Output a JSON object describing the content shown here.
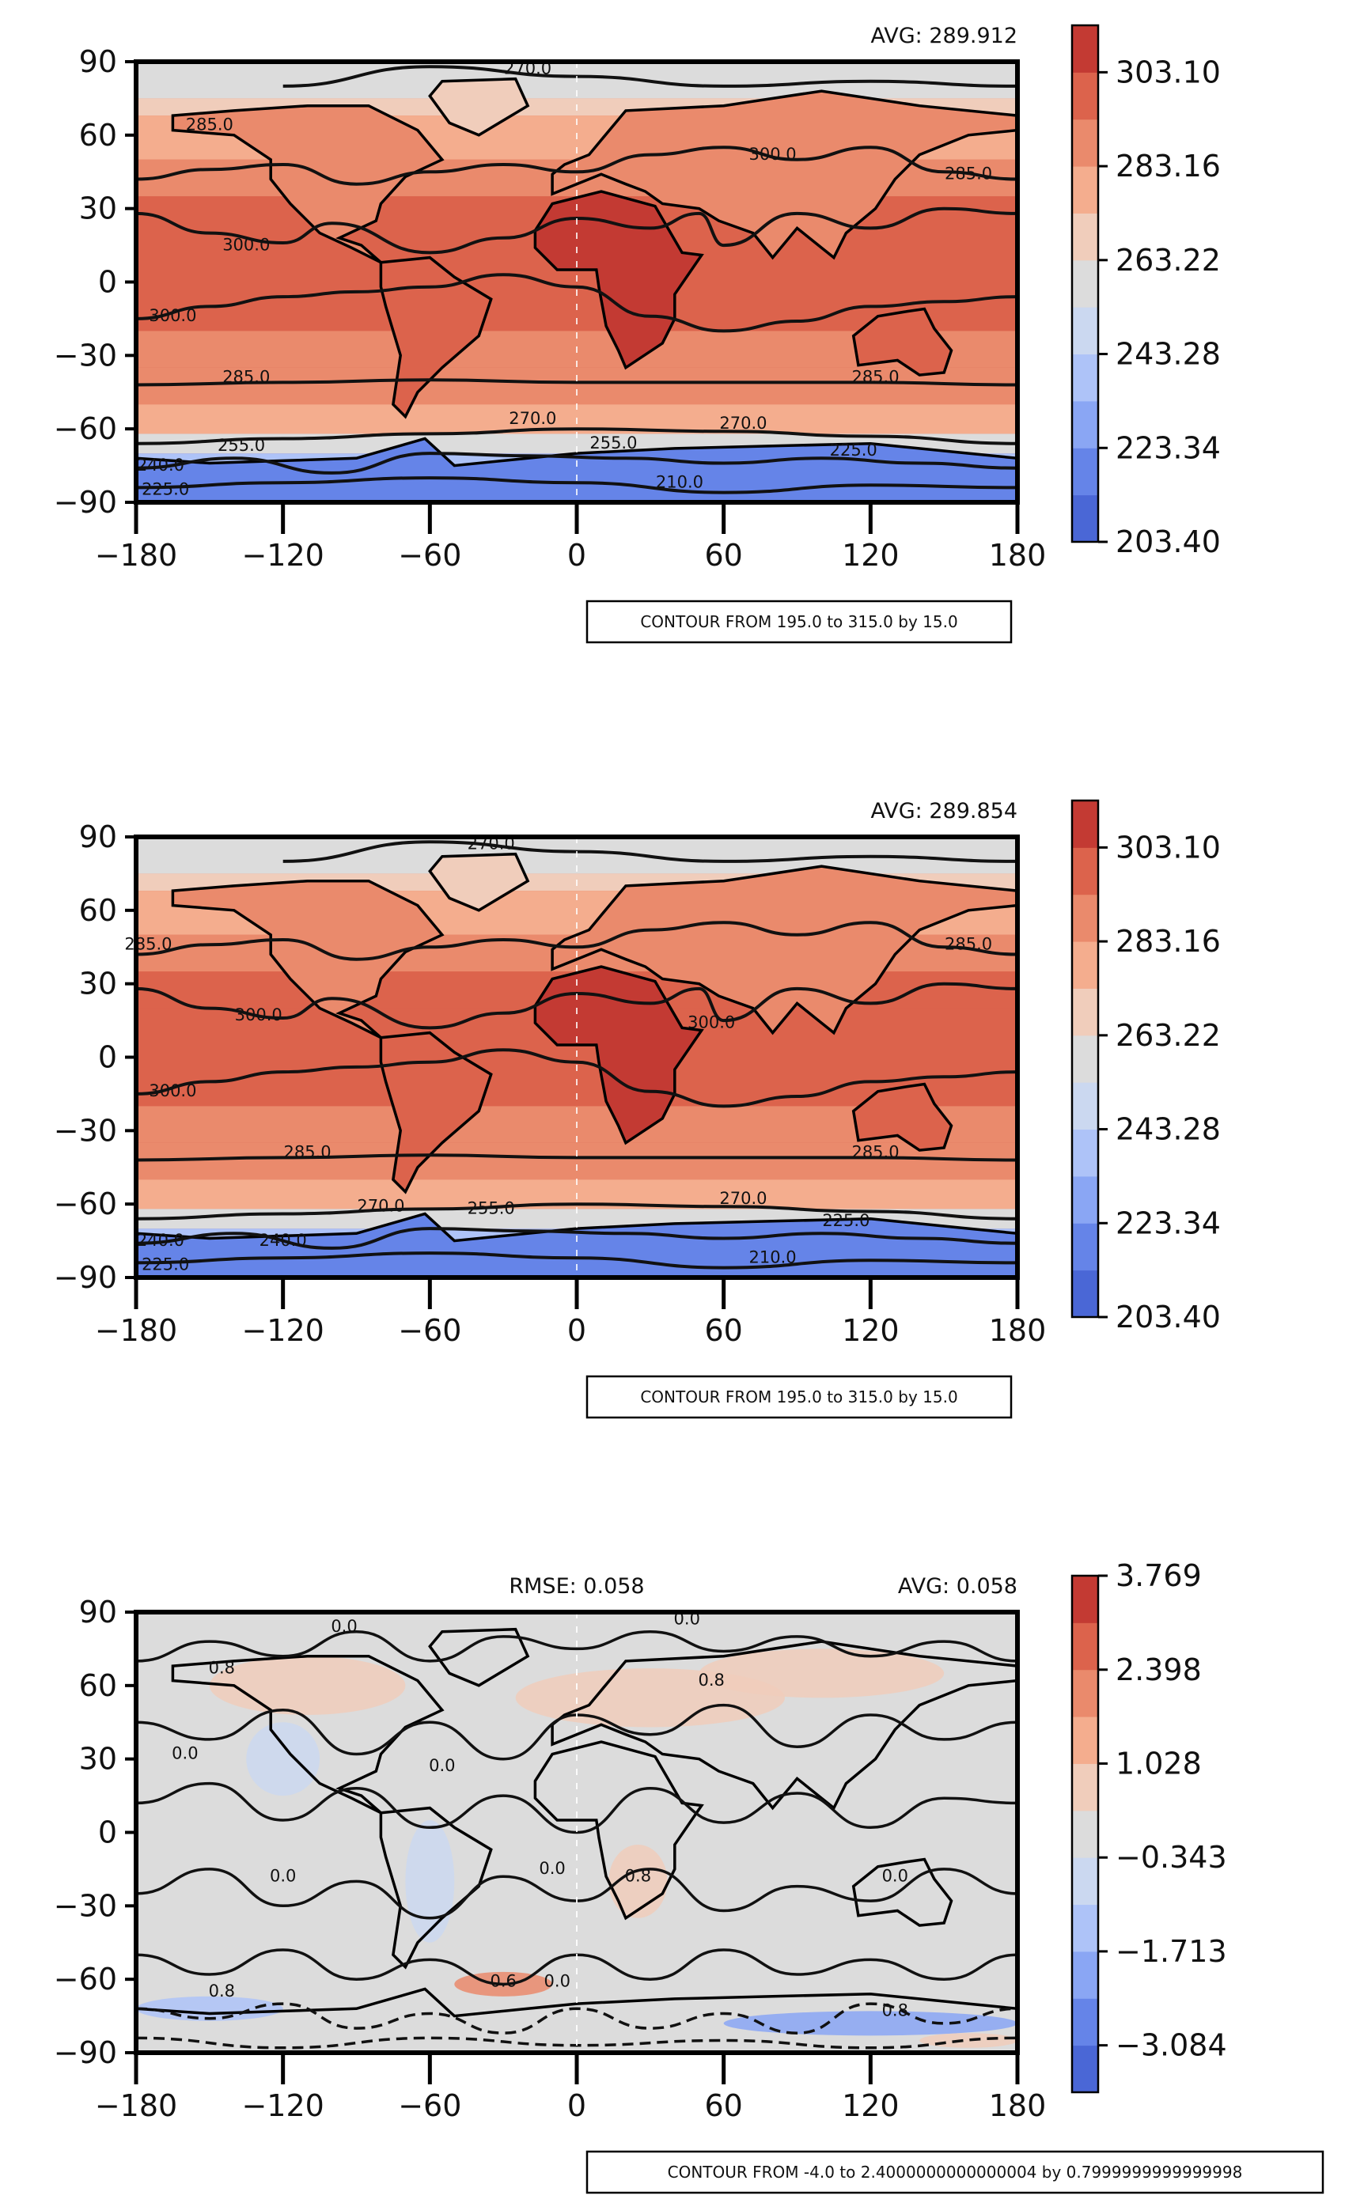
{
  "colors": {
    "ramp": [
      "#4a67d6",
      "#6584e8",
      "#8aa6f4",
      "#aec3f8",
      "#cbd8f0",
      "#dcdcdc",
      "#f0cdbb",
      "#f4ad8e",
      "#ea8a6c",
      "#dc634c",
      "#c33a33"
    ]
  },
  "chart_data": [
    {
      "type": "heatmap",
      "title": "",
      "stats": {
        "avg_label": "AVG: 289.912"
      },
      "xlim": [
        -180,
        180
      ],
      "ylim": [
        -90,
        90
      ],
      "xticks": [
        "−180",
        "−120",
        "−60",
        "0",
        "60",
        "120",
        "180"
      ],
      "yticks": [
        "90",
        "60",
        "30",
        "0",
        "−30",
        "−60",
        "−90"
      ],
      "colorbar": {
        "range": [
          203.4,
          313.07
        ],
        "ticks": [
          "303.10",
          "283.16",
          "263.22",
          "243.28",
          "223.34",
          "203.40"
        ],
        "tick_values": [
          303.1,
          283.16,
          263.22,
          243.28,
          223.34,
          203.4
        ]
      },
      "zonal_mean_profile": [
        {
          "lat": 90,
          "value": 258
        },
        {
          "lat": 75,
          "value": 263
        },
        {
          "lat": 68,
          "value": 272
        },
        {
          "lat": 50,
          "value": 282
        },
        {
          "lat": 35,
          "value": 292
        },
        {
          "lat": 20,
          "value": 300
        },
        {
          "lat": 0,
          "value": 301
        },
        {
          "lat": -20,
          "value": 298
        },
        {
          "lat": -35,
          "value": 288
        },
        {
          "lat": -50,
          "value": 280
        },
        {
          "lat": -62,
          "value": 268
        },
        {
          "lat": -70,
          "value": 250
        },
        {
          "lat": -78,
          "value": 232
        },
        {
          "lat": -90,
          "value": 215
        }
      ],
      "contour_labels": [
        {
          "text": "270.0",
          "lon": -20,
          "lat": 85
        },
        {
          "text": "285.0",
          "lon": -150,
          "lat": 62
        },
        {
          "text": "300.0",
          "lon": 80,
          "lat": 50
        },
        {
          "text": "285.0",
          "lon": 160,
          "lat": 42
        },
        {
          "text": "300.0",
          "lon": -135,
          "lat": 13
        },
        {
          "text": "300.0",
          "lon": -165,
          "lat": -16
        },
        {
          "text": "285.0",
          "lon": -135,
          "lat": -41
        },
        {
          "text": "285.0",
          "lon": 122,
          "lat": -41
        },
        {
          "text": "270.0",
          "lon": -18,
          "lat": -58
        },
        {
          "text": "270.0",
          "lon": 68,
          "lat": -60
        },
        {
          "text": "255.0",
          "lon": 15,
          "lat": -68
        },
        {
          "text": "255.0",
          "lon": -137,
          "lat": -69
        },
        {
          "text": "225.0",
          "lon": 113,
          "lat": -71
        },
        {
          "text": "210.0",
          "lon": 42,
          "lat": -84
        },
        {
          "text": "240.0",
          "lon": -170,
          "lat": -77
        },
        {
          "text": "225.0",
          "lon": -168,
          "lat": -87
        }
      ],
      "contour_box": "CONTOUR FROM 195.0 to 315.0 by 15.0"
    },
    {
      "type": "heatmap",
      "title": "",
      "stats": {
        "avg_label": "AVG: 289.854"
      },
      "xlim": [
        -180,
        180
      ],
      "ylim": [
        -90,
        90
      ],
      "xticks": [
        "−180",
        "−120",
        "−60",
        "0",
        "60",
        "120",
        "180"
      ],
      "yticks": [
        "90",
        "60",
        "30",
        "0",
        "−30",
        "−60",
        "−90"
      ],
      "colorbar": {
        "range": [
          203.4,
          313.07
        ],
        "ticks": [
          "303.10",
          "283.16",
          "263.22",
          "243.28",
          "223.34",
          "203.40"
        ],
        "tick_values": [
          303.1,
          283.16,
          263.22,
          243.28,
          223.34,
          203.4
        ]
      },
      "zonal_mean_profile": [
        {
          "lat": 90,
          "value": 258
        },
        {
          "lat": 75,
          "value": 263
        },
        {
          "lat": 68,
          "value": 272
        },
        {
          "lat": 50,
          "value": 282
        },
        {
          "lat": 35,
          "value": 292
        },
        {
          "lat": 20,
          "value": 300
        },
        {
          "lat": 0,
          "value": 301
        },
        {
          "lat": -20,
          "value": 298
        },
        {
          "lat": -35,
          "value": 288
        },
        {
          "lat": -50,
          "value": 280
        },
        {
          "lat": -62,
          "value": 268
        },
        {
          "lat": -70,
          "value": 250
        },
        {
          "lat": -78,
          "value": 232
        },
        {
          "lat": -90,
          "value": 215
        }
      ],
      "contour_labels": [
        {
          "text": "270.0",
          "lon": -35,
          "lat": 85
        },
        {
          "text": "285.0",
          "lon": -175,
          "lat": 44
        },
        {
          "text": "285.0",
          "lon": 160,
          "lat": 44
        },
        {
          "text": "300.0",
          "lon": -130,
          "lat": 15
        },
        {
          "text": "300.0",
          "lon": -165,
          "lat": -16
        },
        {
          "text": "300.0",
          "lon": 55,
          "lat": 12
        },
        {
          "text": "285.0",
          "lon": -110,
          "lat": -41
        },
        {
          "text": "285.0",
          "lon": 122,
          "lat": -41
        },
        {
          "text": "270.0",
          "lon": -80,
          "lat": -63
        },
        {
          "text": "255.0",
          "lon": -35,
          "lat": -64
        },
        {
          "text": "270.0",
          "lon": 68,
          "lat": -60
        },
        {
          "text": "225.0",
          "lon": 110,
          "lat": -69
        },
        {
          "text": "240.0",
          "lon": -120,
          "lat": -77
        },
        {
          "text": "240.0",
          "lon": -170,
          "lat": -77
        },
        {
          "text": "210.0",
          "lon": 80,
          "lat": -84
        },
        {
          "text": "225.0",
          "lon": -168,
          "lat": -87
        }
      ],
      "contour_box": "CONTOUR FROM 195.0 to 315.0 by 15.0"
    },
    {
      "type": "heatmap",
      "title": "",
      "stats": {
        "rmse_label": "RMSE: 0.058",
        "avg_label": "AVG: 0.058"
      },
      "xlim": [
        -180,
        180
      ],
      "ylim": [
        -90,
        90
      ],
      "xticks": [
        "−180",
        "−120",
        "−60",
        "0",
        "60",
        "120",
        "180"
      ],
      "yticks": [
        "90",
        "60",
        "30",
        "0",
        "−30",
        "−60",
        "−90"
      ],
      "colorbar": {
        "range": [
          -3.769,
          3.769
        ],
        "ticks": [
          "3.769",
          "2.398",
          "1.028",
          "−0.343",
          "−1.713",
          "−3.084"
        ],
        "tick_values": [
          3.769,
          2.398,
          1.028,
          -0.343,
          -1.713,
          -3.084
        ]
      },
      "difference_field": "mostly near 0.0; positive anomalies (~0.8) over northern continents and Antarctica edge; negative (~-0.8) over South America and Southern Ocean",
      "contour_labels": [
        {
          "text": "0.0",
          "lon": -95,
          "lat": 82
        },
        {
          "text": "0.0",
          "lon": 45,
          "lat": 85
        },
        {
          "text": "0.8",
          "lon": -145,
          "lat": 65
        },
        {
          "text": "0.8",
          "lon": 55,
          "lat": 60
        },
        {
          "text": "0.0",
          "lon": -160,
          "lat": 30
        },
        {
          "text": "0.0",
          "lon": -55,
          "lat": 25
        },
        {
          "text": "0.0",
          "lon": -120,
          "lat": -20
        },
        {
          "text": "0.0",
          "lon": -10,
          "lat": -17
        },
        {
          "text": "0.8",
          "lon": 25,
          "lat": -20
        },
        {
          "text": "0.0",
          "lon": 130,
          "lat": -20
        },
        {
          "text": "0.8",
          "lon": -145,
          "lat": -67
        },
        {
          "text": "0.6",
          "lon": -30,
          "lat": -63
        },
        {
          "text": "0.0",
          "lon": -8,
          "lat": -63
        },
        {
          "text": "0.8",
          "lon": 130,
          "lat": -75
        }
      ],
      "contour_box": "CONTOUR FROM -4.0 to 2.4000000000000004 by 0.7999999999999998"
    }
  ]
}
